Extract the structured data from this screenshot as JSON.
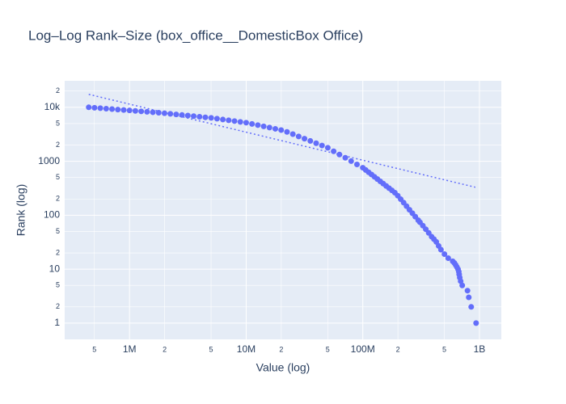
{
  "chart_data": {
    "type": "scatter",
    "title": "Log–Log Rank–Size (box_office__DomesticBox Office)",
    "x_label": "Value (log)",
    "y_label": "Rank (log)",
    "log_x": true,
    "log_y": true,
    "grid": true,
    "xlim": [
      278000,
      1540000000
    ],
    "ylim": [
      0.5,
      31000
    ],
    "xticks": [
      {
        "value": 500000,
        "label": "5"
      },
      {
        "value": 1000000,
        "label": "1M"
      },
      {
        "value": 2000000,
        "label": "2"
      },
      {
        "value": 5000000,
        "label": "5"
      },
      {
        "value": 10000000,
        "label": "10M"
      },
      {
        "value": 20000000,
        "label": "2"
      },
      {
        "value": 50000000,
        "label": "5"
      },
      {
        "value": 100000000,
        "label": "100M"
      },
      {
        "value": 200000000,
        "label": "2"
      },
      {
        "value": 500000000,
        "label": "5"
      },
      {
        "value": 1000000000,
        "label": "1B"
      }
    ],
    "yticks": [
      1,
      2,
      5,
      10,
      {
        "value": 20,
        "label": "2"
      },
      {
        "value": 50,
        "label": "5"
      },
      100,
      {
        "value": 200,
        "label": "2"
      },
      {
        "value": 500,
        "label": "5"
      },
      1000,
      {
        "value": 2000,
        "label": "2"
      },
      {
        "value": 5000,
        "label": "5"
      },
      {
        "value": 10000,
        "label": "10k"
      },
      {
        "value": 20000,
        "label": "2"
      }
    ],
    "series": [
      {
        "color": "#636efa",
        "mode": "markers",
        "x": [
          447000,
          501000,
          562000,
          631000,
          708000,
          794000,
          891000,
          1000000,
          1122000,
          1259000,
          1413000,
          1585000,
          1778000,
          1995000,
          2239000,
          2512000,
          2818000,
          3162000,
          3548000,
          3981000,
          4467000,
          5012000,
          5623000,
          6310000,
          7079000,
          7943000,
          8913000,
          10000000,
          11220000,
          12590000,
          14130000,
          15850000,
          17780000,
          19950000,
          22390000,
          25120000,
          28180000,
          31620000,
          35480000,
          39810000,
          44670000,
          50120000,
          56230000,
          63100000,
          70790000,
          79430000,
          89130000,
          100000000,
          105900000,
          112200000,
          118900000,
          125900000,
          133400000,
          141300000,
          149600000,
          158500000,
          167900000,
          177800000,
          188400000,
          199500000,
          211300000,
          223900000,
          237100000,
          251200000,
          266100000,
          281800000,
          298500000,
          309000000,
          327300000,
          346700000,
          367300000,
          389000000,
          407400000,
          426600000,
          446700000,
          467700000,
          501200000,
          540000000,
          590000000,
          610000000,
          625000000,
          640000000,
          655000000,
          665000000,
          670000000,
          678000000,
          690000000,
          712000000,
          790000000,
          810000000,
          850000000,
          936000000
        ],
        "values": [
          10000,
          9817,
          9640,
          9440,
          9270,
          9080,
          8910,
          8750,
          8570,
          8410,
          8240,
          8090,
          7940,
          7760,
          7570,
          7380,
          7210,
          7030,
          6850,
          6680,
          6520,
          6370,
          6150,
          5940,
          5740,
          5560,
          5370,
          5190,
          4920,
          4680,
          4440,
          4210,
          3990,
          3790,
          3500,
          3180,
          2880,
          2620,
          2380,
          2160,
          1960,
          1780,
          1530,
          1330,
          1160,
          1005,
          873,
          759,
          689,
          625,
          568,
          515,
          468,
          424,
          385,
          349,
          317,
          288,
          261,
          230,
          198,
          171,
          147,
          126,
          109,
          94,
          81,
          74,
          64,
          55,
          47,
          40,
          36,
          32,
          27,
          23,
          19,
          16,
          14,
          13,
          12,
          11,
          10,
          9,
          8,
          7,
          6,
          5,
          4,
          3,
          2,
          1
        ]
      },
      {
        "color": "#636efa",
        "mode": "lines",
        "dash": "dot",
        "x": [
          447000,
          922000000
        ],
        "values": [
          17400,
          330
        ]
      }
    ]
  }
}
